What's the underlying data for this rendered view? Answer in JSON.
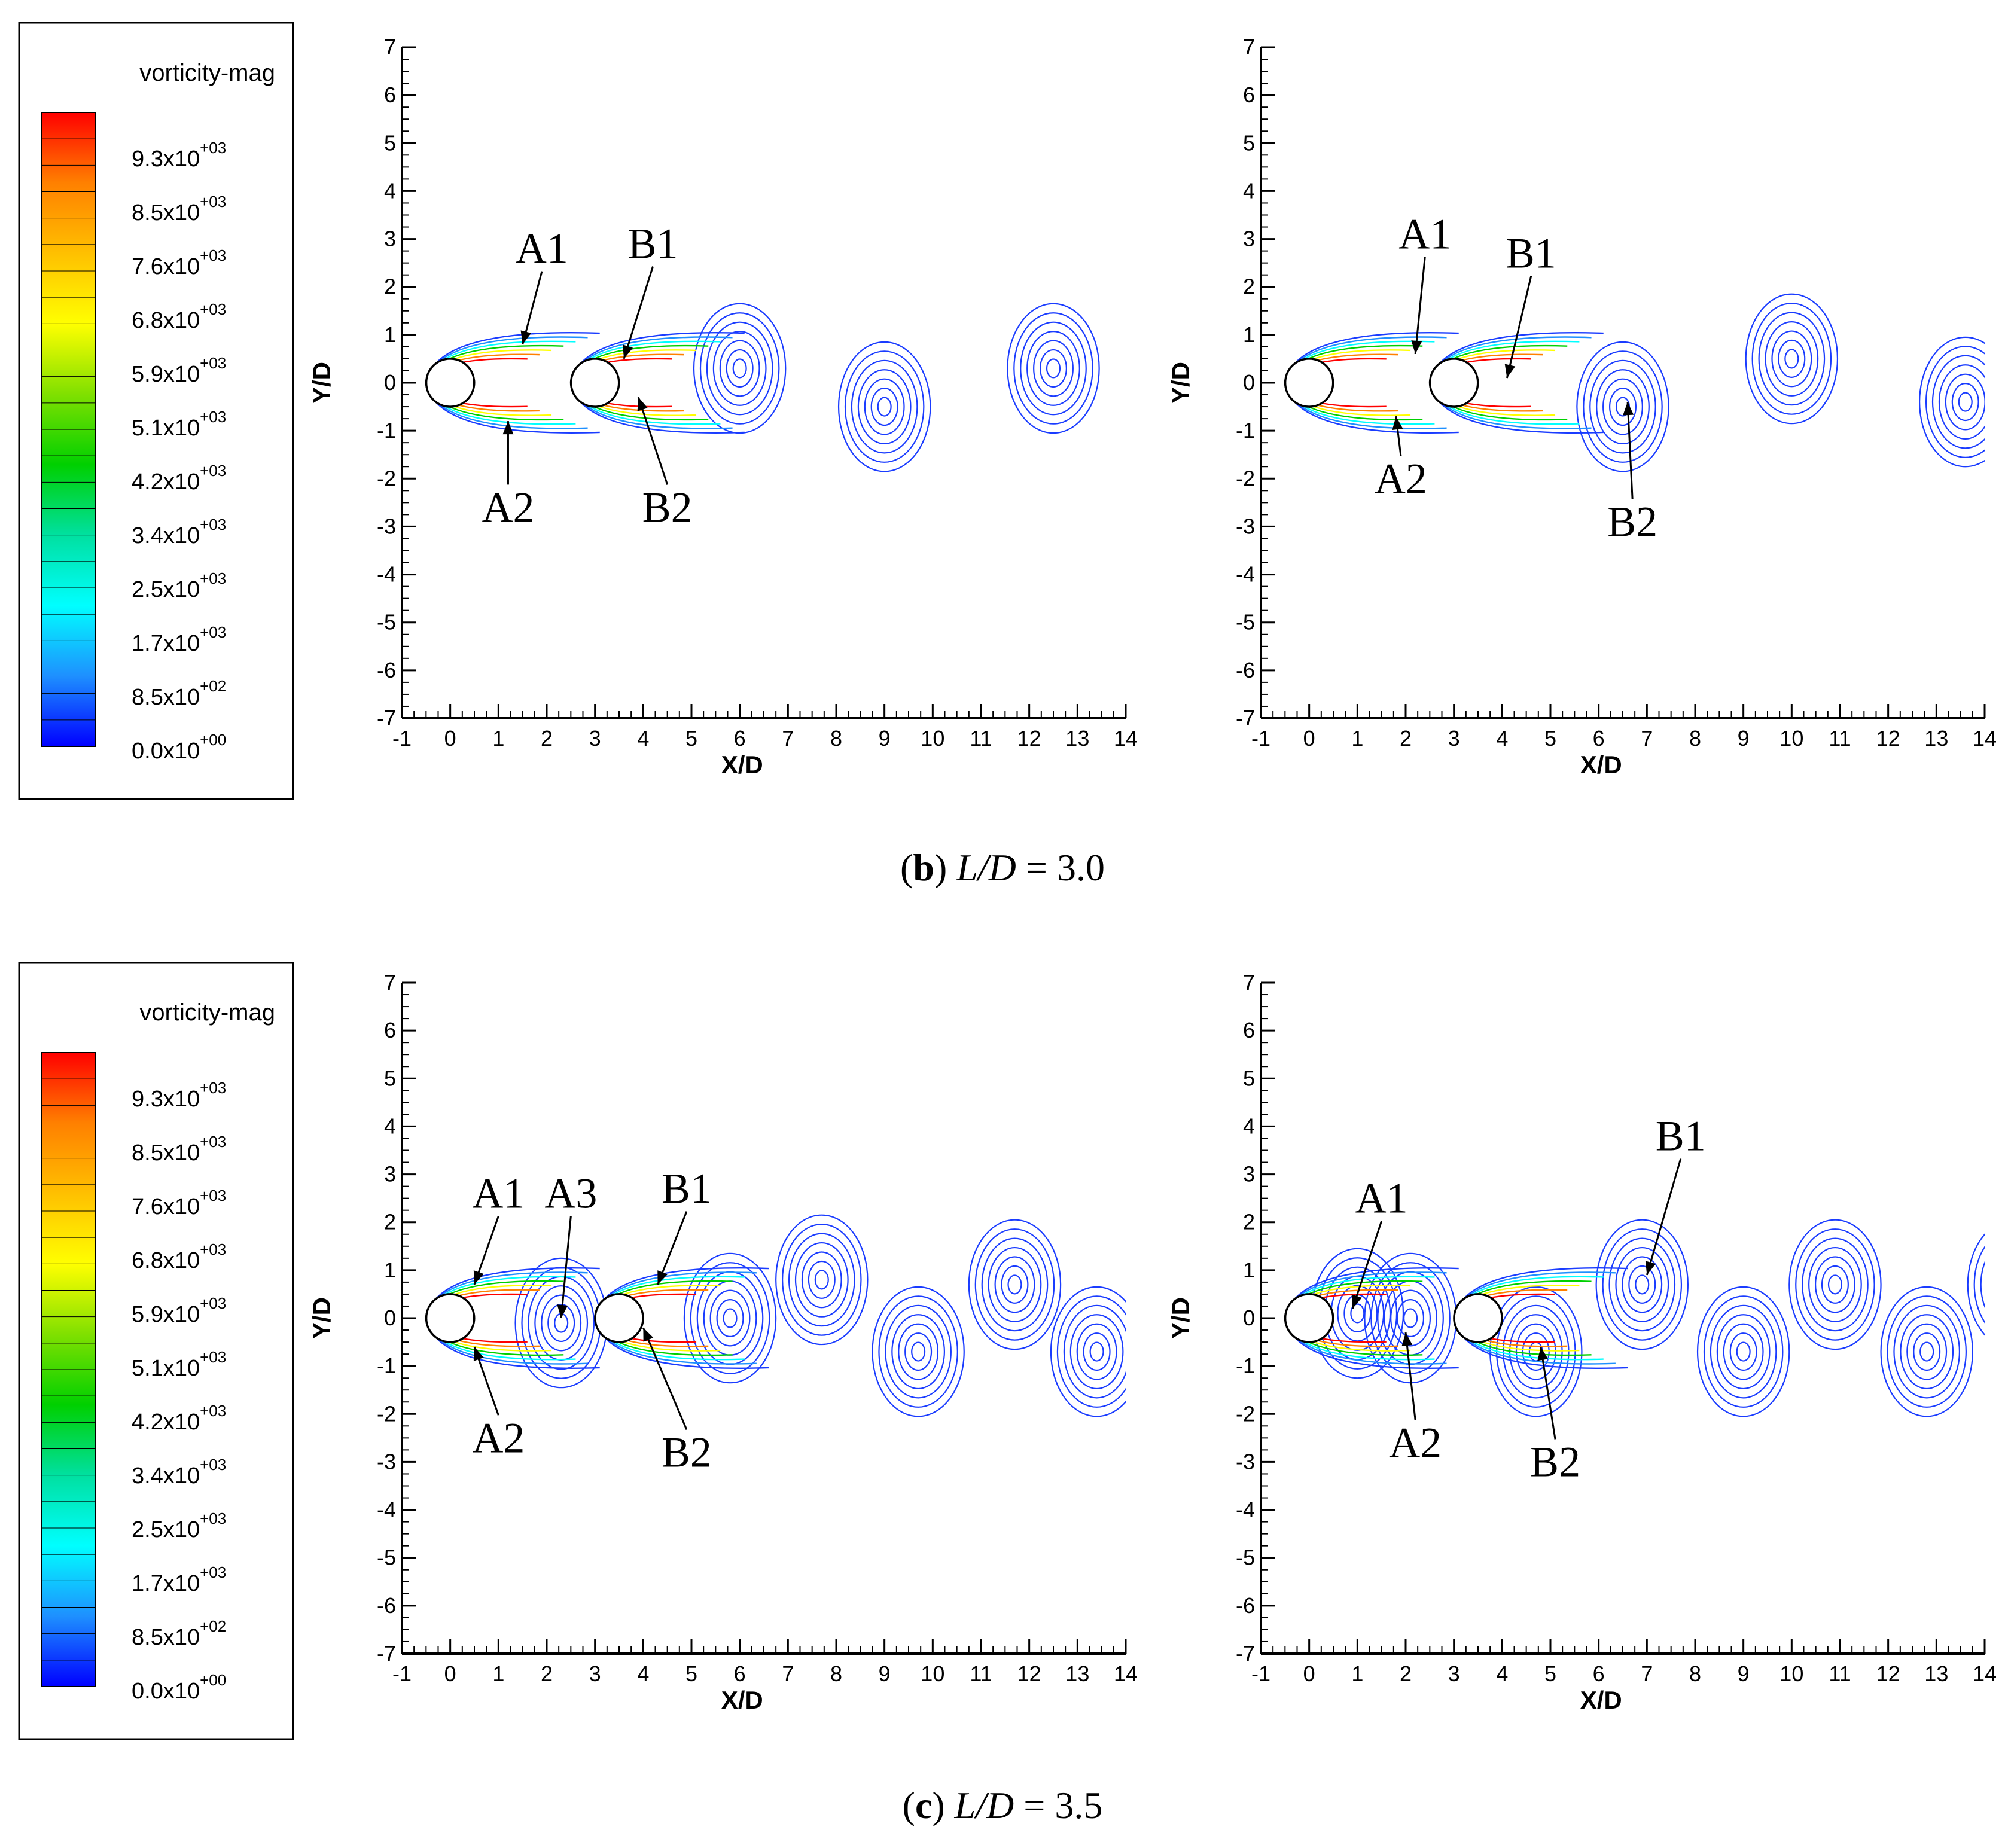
{
  "colorbar": {
    "title": "vorticity-mag",
    "ticks": [
      {
        "mantissa": "9.3x10",
        "exponent": "+03"
      },
      {
        "mantissa": "8.5x10",
        "exponent": "+03"
      },
      {
        "mantissa": "7.6x10",
        "exponent": "+03"
      },
      {
        "mantissa": "6.8x10",
        "exponent": "+03"
      },
      {
        "mantissa": "5.9x10",
        "exponent": "+03"
      },
      {
        "mantissa": "5.1x10",
        "exponent": "+03"
      },
      {
        "mantissa": "4.2x10",
        "exponent": "+03"
      },
      {
        "mantissa": "3.4x10",
        "exponent": "+03"
      },
      {
        "mantissa": "2.5x10",
        "exponent": "+03"
      },
      {
        "mantissa": "1.7x10",
        "exponent": "+03"
      },
      {
        "mantissa": "8.5x10",
        "exponent": "+02"
      },
      {
        "mantissa": "0.0x10",
        "exponent": "+00"
      }
    ],
    "colors": [
      "#0000ff",
      "#1e90ff",
      "#00ffff",
      "#00e0a0",
      "#00d000",
      "#80e000",
      "#ffff00",
      "#ffc000",
      "#ff8000",
      "#ff0000"
    ]
  },
  "captions": [
    {
      "prefix": "(",
      "bold": "b",
      "suffix": ") ",
      "italic": "L/D",
      "value": " = 3.0"
    },
    {
      "prefix": "(",
      "bold": "c",
      "suffix": ") ",
      "italic": "L/D",
      "value": " = 3.5"
    }
  ],
  "chart_data": [
    {
      "type": "contour",
      "panel": "b-left",
      "xlabel": "X/D",
      "ylabel": "Y/D",
      "xlim": [
        -1,
        14
      ],
      "ylim": [
        -7,
        7
      ],
      "xticks": [
        -1,
        0,
        1,
        2,
        3,
        4,
        5,
        6,
        7,
        8,
        9,
        10,
        11,
        12,
        13,
        14
      ],
      "yticks": [
        -7,
        -6,
        -5,
        -4,
        -3,
        -2,
        -1,
        0,
        1,
        2,
        3,
        4,
        5,
        6,
        7
      ],
      "cylinders": [
        {
          "x": 0,
          "y": 0
        },
        {
          "x": 3,
          "y": 0
        }
      ],
      "vortices": [
        {
          "x": 6,
          "y": 0.3
        },
        {
          "x": 9,
          "y": -0.5
        },
        {
          "x": 12.5,
          "y": 0.3
        }
      ],
      "annotations": [
        {
          "text": "A1",
          "tx": 1.9,
          "ty": 2.5,
          "ax": 1.5,
          "ay": 0.8
        },
        {
          "text": "A2",
          "tx": 1.2,
          "ty": -2.9,
          "ax": 1.2,
          "ay": -0.8
        },
        {
          "text": "B1",
          "tx": 4.2,
          "ty": 2.6,
          "ax": 3.6,
          "ay": 0.5
        },
        {
          "text": "B2",
          "tx": 4.5,
          "ty": -2.9,
          "ax": 3.9,
          "ay": -0.3
        }
      ]
    },
    {
      "type": "contour",
      "panel": "b-right",
      "xlabel": "X/D",
      "ylabel": "Y/D",
      "xlim": [
        -1,
        14
      ],
      "ylim": [
        -7,
        7
      ],
      "xticks": [
        -1,
        0,
        1,
        2,
        3,
        4,
        5,
        6,
        7,
        8,
        9,
        10,
        11,
        12,
        13,
        14
      ],
      "yticks": [
        -7,
        -6,
        -5,
        -4,
        -3,
        -2,
        -1,
        0,
        1,
        2,
        3,
        4,
        5,
        6,
        7
      ],
      "cylinders": [
        {
          "x": 0,
          "y": 0
        },
        {
          "x": 3,
          "y": 0
        }
      ],
      "vortices": [
        {
          "x": 6.5,
          "y": -0.5
        },
        {
          "x": 10,
          "y": 0.5
        },
        {
          "x": 13.6,
          "y": -0.4
        }
      ],
      "annotations": [
        {
          "text": "A1",
          "tx": 2.4,
          "ty": 2.8,
          "ax": 2.2,
          "ay": 0.6
        },
        {
          "text": "A2",
          "tx": 1.9,
          "ty": -2.3,
          "ax": 1.8,
          "ay": -0.7
        },
        {
          "text": "B1",
          "tx": 4.6,
          "ty": 2.4,
          "ax": 4.1,
          "ay": 0.1
        },
        {
          "text": "B2",
          "tx": 6.7,
          "ty": -3.2,
          "ax": 6.6,
          "ay": -0.4
        }
      ]
    },
    {
      "type": "contour",
      "panel": "c-left",
      "xlabel": "X/D",
      "ylabel": "Y/D",
      "xlim": [
        -1,
        14
      ],
      "ylim": [
        -7,
        7
      ],
      "xticks": [
        -1,
        0,
        1,
        2,
        3,
        4,
        5,
        6,
        7,
        8,
        9,
        10,
        11,
        12,
        13,
        14
      ],
      "yticks": [
        -7,
        -6,
        -5,
        -4,
        -3,
        -2,
        -1,
        0,
        1,
        2,
        3,
        4,
        5,
        6,
        7
      ],
      "cylinders": [
        {
          "x": 0,
          "y": 0
        },
        {
          "x": 3.5,
          "y": 0
        }
      ],
      "vortices": [
        {
          "x": 2.3,
          "y": -0.1
        },
        {
          "x": 5.8,
          "y": 0
        },
        {
          "x": 7.7,
          "y": 0.8
        },
        {
          "x": 9.7,
          "y": -0.7
        },
        {
          "x": 11.7,
          "y": 0.7
        },
        {
          "x": 13.4,
          "y": -0.7
        }
      ],
      "annotations": [
        {
          "text": "A1",
          "tx": 1.0,
          "ty": 2.3,
          "ax": 0.5,
          "ay": 0.7
        },
        {
          "text": "A2",
          "tx": 1.0,
          "ty": -2.8,
          "ax": 0.5,
          "ay": -0.6
        },
        {
          "text": "A3",
          "tx": 2.5,
          "ty": 2.3,
          "ax": 2.3,
          "ay": 0
        },
        {
          "text": "B1",
          "tx": 4.9,
          "ty": 2.4,
          "ax": 4.3,
          "ay": 0.7
        },
        {
          "text": "B2",
          "tx": 4.9,
          "ty": -3.1,
          "ax": 4.0,
          "ay": -0.2
        }
      ]
    },
    {
      "type": "contour",
      "panel": "c-right",
      "xlabel": "X/D",
      "ylabel": "Y/D",
      "xlim": [
        -1,
        14
      ],
      "ylim": [
        -7,
        7
      ],
      "xticks": [
        -1,
        0,
        1,
        2,
        3,
        4,
        5,
        6,
        7,
        8,
        9,
        10,
        11,
        12,
        13,
        14
      ],
      "yticks": [
        -7,
        -6,
        -5,
        -4,
        -3,
        -2,
        -1,
        0,
        1,
        2,
        3,
        4,
        5,
        6,
        7
      ],
      "cylinders": [
        {
          "x": 0,
          "y": 0
        },
        {
          "x": 3.5,
          "y": 0
        }
      ],
      "vortices": [
        {
          "x": 1.0,
          "y": 0.1
        },
        {
          "x": 2.1,
          "y": 0
        },
        {
          "x": 4.7,
          "y": -0.7
        },
        {
          "x": 6.9,
          "y": 0.7
        },
        {
          "x": 9.0,
          "y": -0.7
        },
        {
          "x": 10.9,
          "y": 0.7
        },
        {
          "x": 12.8,
          "y": -0.7
        },
        {
          "x": 14.6,
          "y": 0.7
        }
      ],
      "annotations": [
        {
          "text": "A1",
          "tx": 1.5,
          "ty": 2.2,
          "ax": 0.9,
          "ay": 0.2
        },
        {
          "text": "A2",
          "tx": 2.2,
          "ty": -2.9,
          "ax": 2.0,
          "ay": -0.3
        },
        {
          "text": "B1",
          "tx": 7.7,
          "ty": 3.5,
          "ax": 7.0,
          "ay": 0.9
        },
        {
          "text": "B2",
          "tx": 5.1,
          "ty": -3.3,
          "ax": 4.8,
          "ay": -0.6
        }
      ]
    }
  ]
}
